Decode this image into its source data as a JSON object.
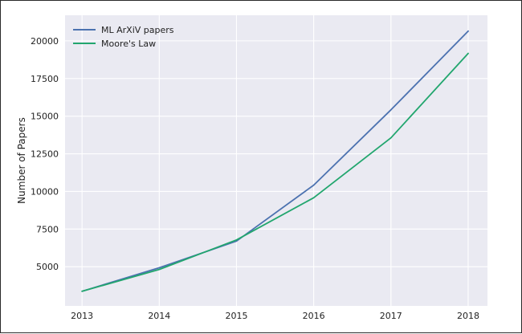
{
  "chart_data": {
    "type": "line",
    "ylabel": "Number of Papers",
    "xlabel": "",
    "x": [
      2013,
      2014,
      2015,
      2016,
      2017,
      2018
    ],
    "x_tick_labels": [
      "2013",
      "2014",
      "2015",
      "2016",
      "2017",
      "2018"
    ],
    "y_ticks": [
      5000,
      7500,
      10000,
      12500,
      15000,
      17500,
      20000
    ],
    "y_tick_labels": [
      "5000",
      "7500",
      "10000",
      "12500",
      "15000",
      "17500",
      "20000"
    ],
    "xlim": [
      2012.78,
      2018.25
    ],
    "ylim": [
      2400,
      21700
    ],
    "grid": true,
    "legend_position": "top-left",
    "series": [
      {
        "name": "ML ArXiV papers",
        "color": "#4c72b0",
        "values": [
          3370,
          4930,
          6700,
          10420,
          15420,
          20650
        ]
      },
      {
        "name": "Moore's Law",
        "color": "#22a66e",
        "values": [
          3370,
          4820,
          6780,
          9580,
          13560,
          19170
        ]
      }
    ]
  }
}
